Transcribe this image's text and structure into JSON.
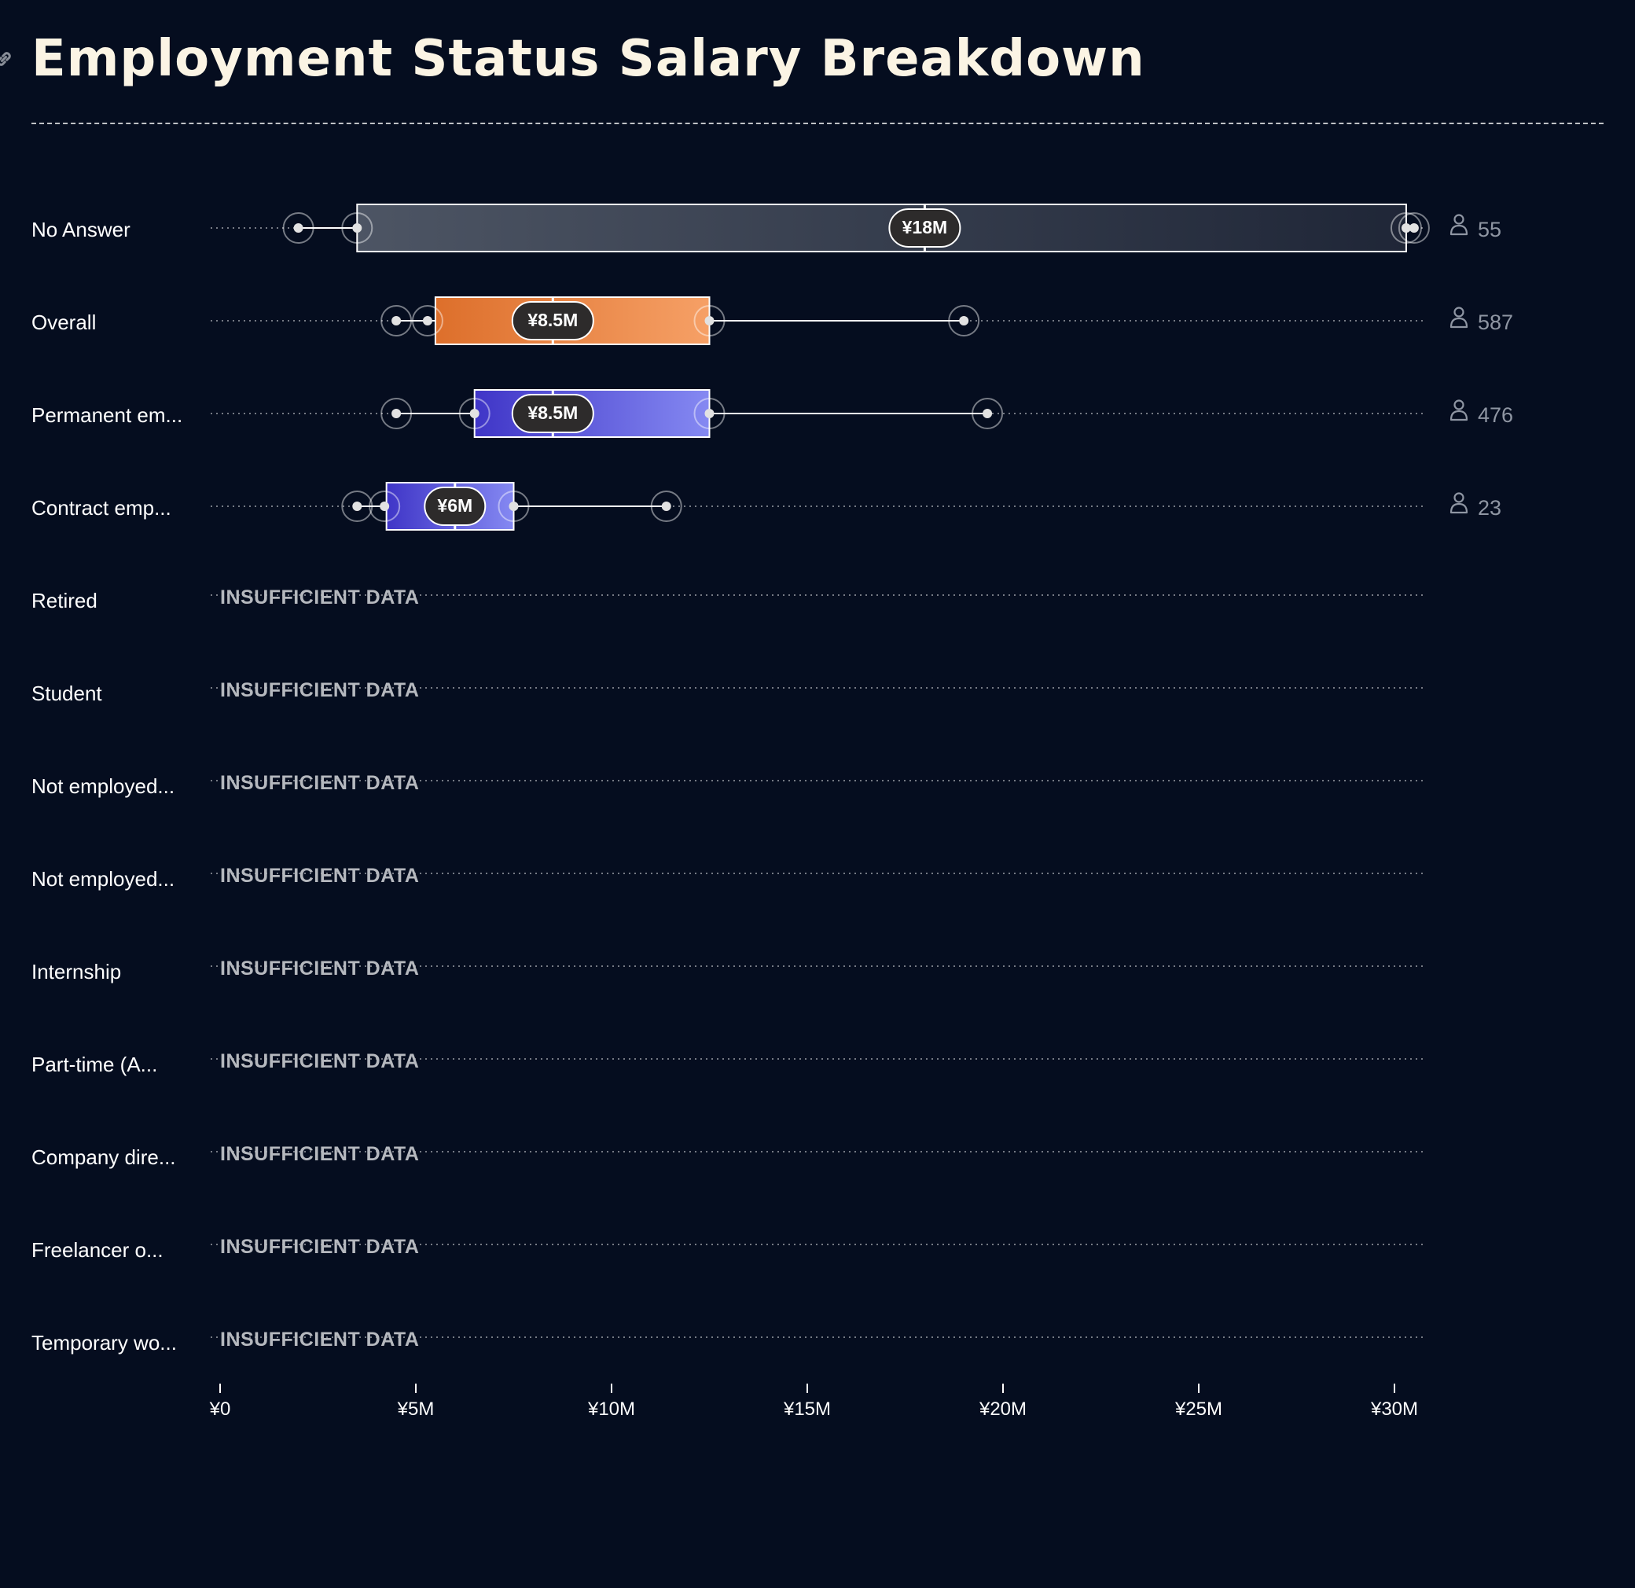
{
  "title": "Employment Status Salary Breakdown",
  "icons": {
    "title_icon": "link-icon",
    "count_icon": "person-icon"
  },
  "colors": {
    "background": "#050d1f",
    "title": "#fbf4e4",
    "no_answer_fill": [
      "#4d5564",
      "#1f2637"
    ],
    "overall_fill": [
      "#dd6f2b",
      "#f6a066"
    ],
    "employee_fill": [
      "#3f35c7",
      "#8589f2"
    ]
  },
  "chart_data": {
    "type": "box",
    "x_axis": {
      "min": 0,
      "max": 30,
      "unit": "¥M",
      "ticks": [
        0,
        5,
        10,
        15,
        20,
        25,
        30
      ],
      "tick_labels": [
        "¥0",
        "¥5M",
        "¥10M",
        "¥15M",
        "¥20M",
        "¥25M",
        "¥30M"
      ]
    },
    "rows": [
      {
        "label": "No Answer",
        "whisker_low": 2,
        "p10": 3.5,
        "q1": 3.5,
        "median": 18,
        "q3": 30.3,
        "p90": 30.3,
        "whisker_high": 30.5,
        "median_label": "¥18M",
        "count": "55",
        "style": "no_answer"
      },
      {
        "label": "Overall",
        "whisker_low": 4.5,
        "p10": 5.3,
        "q1": 5.5,
        "median": 8.5,
        "q3": 12.5,
        "p90": 12.5,
        "whisker_high": 19,
        "median_label": "¥8.5M",
        "count": "587",
        "style": "overall"
      },
      {
        "label": "Permanent em...",
        "whisker_low": 4.5,
        "p10": 6.5,
        "q1": 6.5,
        "median": 8.5,
        "q3": 12.5,
        "p90": 12.5,
        "whisker_high": 19.6,
        "median_label": "¥8.5M",
        "count": "476",
        "style": "employee"
      },
      {
        "label": "Contract emp...",
        "whisker_low": 3.5,
        "p10": 4.2,
        "q1": 4.25,
        "median": 6,
        "q3": 7.5,
        "p90": 7.5,
        "whisker_high": 11.4,
        "median_label": "¥6M",
        "count": "23",
        "style": "employee"
      },
      {
        "label": "Retired",
        "insufficient": "INSUFFICIENT DATA"
      },
      {
        "label": "Student",
        "insufficient": "INSUFFICIENT DATA"
      },
      {
        "label": "Not employed...",
        "insufficient": "INSUFFICIENT DATA"
      },
      {
        "label": "Not employed...",
        "insufficient": "INSUFFICIENT DATA"
      },
      {
        "label": "Internship",
        "insufficient": "INSUFFICIENT DATA"
      },
      {
        "label": "Part-time (A...",
        "insufficient": "INSUFFICIENT DATA"
      },
      {
        "label": "Company dire...",
        "insufficient": "INSUFFICIENT DATA"
      },
      {
        "label": "Freelancer o...",
        "insufficient": "INSUFFICIENT DATA"
      },
      {
        "label": "Temporary wo...",
        "insufficient": "INSUFFICIENT DATA"
      }
    ]
  }
}
